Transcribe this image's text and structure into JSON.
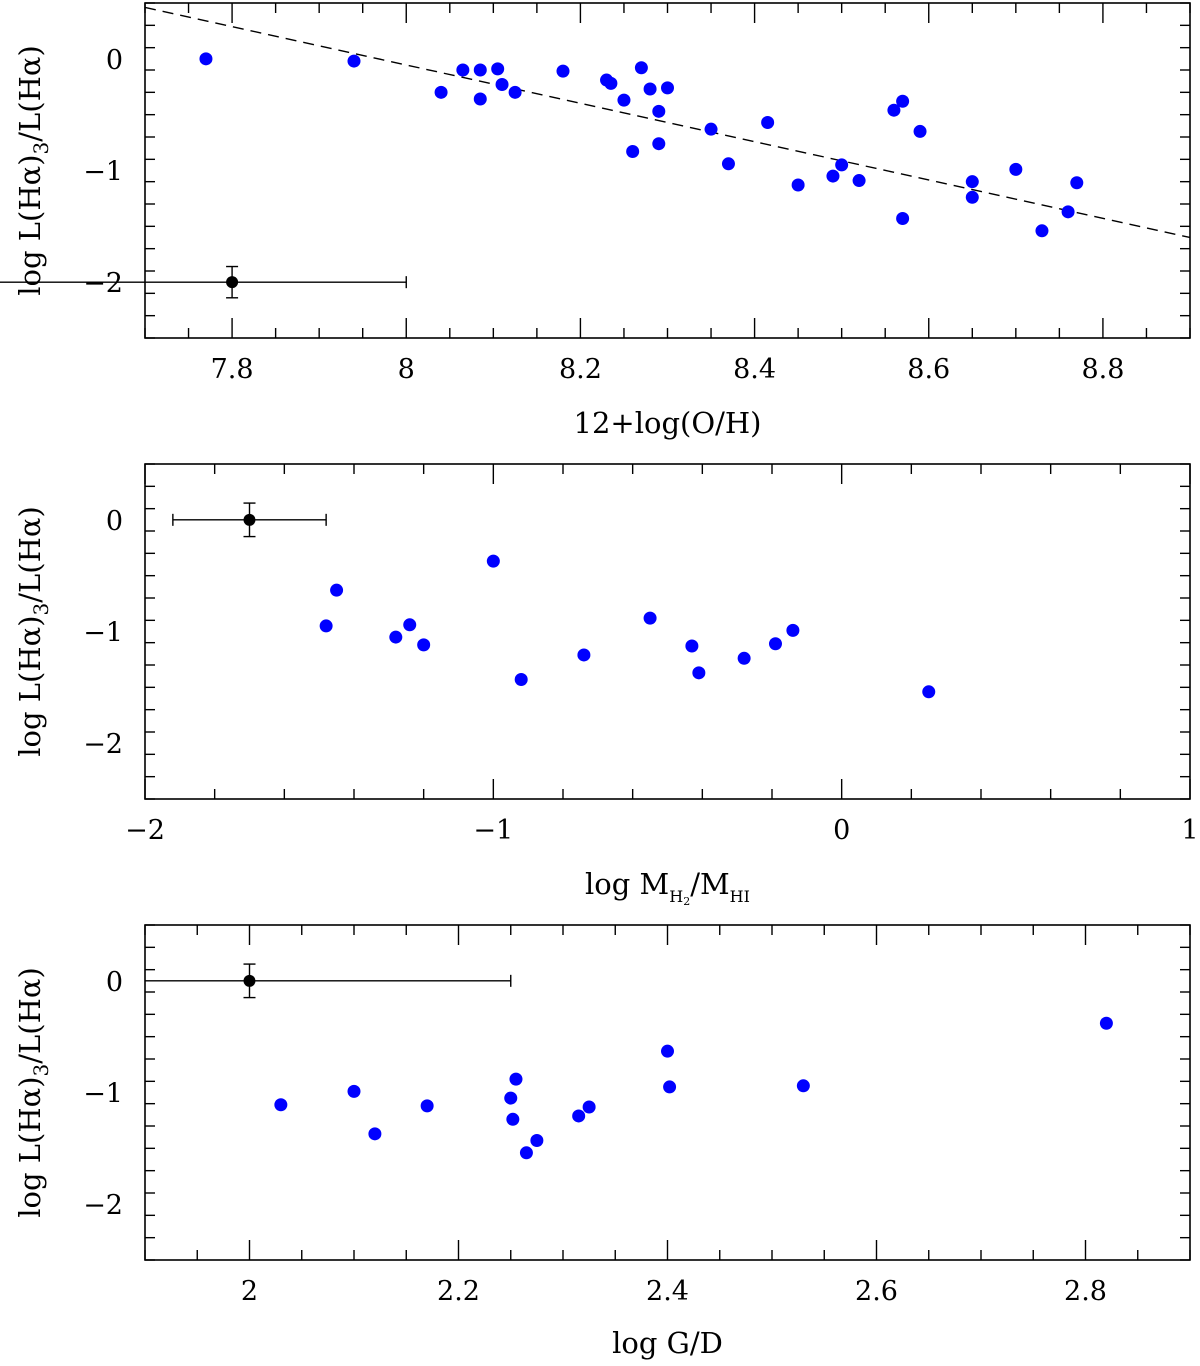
{
  "chart_data": [
    {
      "type": "scatter",
      "xlabel": "12+log(O/H)",
      "ylabel": "log L(Hα)₃/L(Hα)",
      "xlim": [
        7.7,
        8.9
      ],
      "ylim": [
        -2.5,
        0.5
      ],
      "xticks": [
        7.8,
        8.0,
        8.2,
        8.4,
        8.6,
        8.8
      ],
      "xtick_labels": [
        "7.8",
        "8",
        "8.2",
        "8.4",
        "8.6",
        "8.8"
      ],
      "xminor_step": 0.05,
      "yticks": [
        0,
        -1,
        -2
      ],
      "ytick_labels": [
        "0",
        "−1",
        "−2"
      ],
      "yminor_step": 0.2,
      "points": [
        [
          7.77,
          0.0
        ],
        [
          7.94,
          -0.02
        ],
        [
          8.04,
          -0.3
        ],
        [
          8.065,
          -0.1
        ],
        [
          8.085,
          -0.1
        ],
        [
          8.085,
          -0.36
        ],
        [
          8.105,
          -0.09
        ],
        [
          8.11,
          -0.23
        ],
        [
          8.125,
          -0.3
        ],
        [
          8.18,
          -0.11
        ],
        [
          8.23,
          -0.19
        ],
        [
          8.235,
          -0.22
        ],
        [
          8.25,
          -0.37
        ],
        [
          8.26,
          -0.83
        ],
        [
          8.27,
          -0.08
        ],
        [
          8.28,
          -0.27
        ],
        [
          8.29,
          -0.47
        ],
        [
          8.29,
          -0.76
        ],
        [
          8.3,
          -0.26
        ],
        [
          8.35,
          -0.63
        ],
        [
          8.37,
          -0.94
        ],
        [
          8.415,
          -0.57
        ],
        [
          8.45,
          -1.13
        ],
        [
          8.49,
          -1.05
        ],
        [
          8.5,
          -0.95
        ],
        [
          8.52,
          -1.09
        ],
        [
          8.56,
          -0.46
        ],
        [
          8.57,
          -0.38
        ],
        [
          8.57,
          -1.43
        ],
        [
          8.59,
          -0.65
        ],
        [
          8.65,
          -1.1
        ],
        [
          8.65,
          -1.24
        ],
        [
          8.7,
          -0.99
        ],
        [
          8.73,
          -1.54
        ],
        [
          8.76,
          -1.37
        ],
        [
          8.77,
          -1.11
        ]
      ],
      "fit_line": [
        [
          7.7,
          0.46
        ],
        [
          8.9,
          -1.6
        ]
      ],
      "ref_point": {
        "x": 7.8,
        "y": -2.0,
        "xerr": [
          0.3,
          0.2
        ],
        "yerr": 0.14
      }
    },
    {
      "type": "scatter",
      "xlabel": "log M",
      "xlabel_sub1": "H",
      "xlabel_sub1b": "2",
      "xlabel_mid": "/M",
      "xlabel_sub2": "HI",
      "ylabel": "log L(Hα)₃/L(Hα)",
      "xlim": [
        -2,
        1
      ],
      "ylim": [
        -2.5,
        0.5
      ],
      "xticks": [
        -2,
        -1,
        0,
        1
      ],
      "xtick_labels": [
        "−2",
        "−1",
        "0",
        "1"
      ],
      "xminor_step": 0.2,
      "yticks": [
        0,
        -1,
        -2
      ],
      "ytick_labels": [
        "0",
        "−1",
        "−2"
      ],
      "yminor_step": 0.2,
      "points": [
        [
          -1.48,
          -0.95
        ],
        [
          -1.45,
          -0.63
        ],
        [
          -1.28,
          -1.05
        ],
        [
          -1.24,
          -0.94
        ],
        [
          -1.2,
          -1.12
        ],
        [
          -1.0,
          -0.37
        ],
        [
          -0.92,
          -1.43
        ],
        [
          -0.74,
          -1.21
        ],
        [
          -0.55,
          -0.88
        ],
        [
          -0.43,
          -1.13
        ],
        [
          -0.41,
          -1.37
        ],
        [
          -0.28,
          -1.24
        ],
        [
          -0.19,
          -1.11
        ],
        [
          -0.14,
          -0.99
        ],
        [
          0.25,
          -1.54
        ]
      ],
      "ref_point": {
        "x": -1.7,
        "y": 0.0,
        "xerr": [
          0.22,
          0.22
        ],
        "yerr": 0.15
      }
    },
    {
      "type": "scatter",
      "xlabel": "log G/D",
      "ylabel": "log L(Hα)₃/L(Hα)",
      "xlim": [
        1.9,
        2.9
      ],
      "ylim": [
        -2.5,
        0.5
      ],
      "xticks": [
        2.0,
        2.2,
        2.4,
        2.6,
        2.8
      ],
      "xtick_labels": [
        "2",
        "2.2",
        "2.4",
        "2.6",
        "2.8"
      ],
      "xminor_step": 0.05,
      "yticks": [
        0,
        -1,
        -2
      ],
      "ytick_labels": [
        "0",
        "−1",
        "−2"
      ],
      "yminor_step": 0.2,
      "points": [
        [
          2.03,
          -1.11
        ],
        [
          2.1,
          -0.99
        ],
        [
          2.12,
          -1.37
        ],
        [
          2.17,
          -1.12
        ],
        [
          2.25,
          -1.05
        ],
        [
          2.252,
          -1.24
        ],
        [
          2.255,
          -0.88
        ],
        [
          2.265,
          -1.54
        ],
        [
          2.275,
          -1.43
        ],
        [
          2.315,
          -1.21
        ],
        [
          2.325,
          -1.13
        ],
        [
          2.4,
          -0.63
        ],
        [
          2.402,
          -0.95
        ],
        [
          2.53,
          -0.94
        ],
        [
          2.82,
          -0.38
        ]
      ],
      "ref_point": {
        "x": 2.0,
        "y": 0.0,
        "xerr": [
          0.1,
          0.25
        ],
        "yerr": 0.15
      }
    }
  ]
}
